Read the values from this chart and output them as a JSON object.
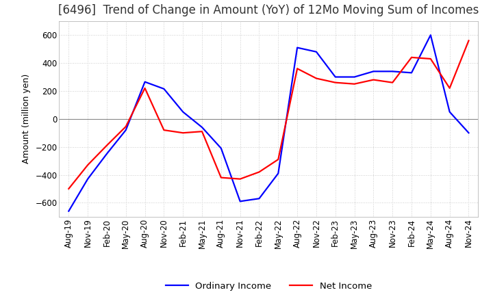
{
  "title": "[6496]  Trend of Change in Amount (YoY) of 12Mo Moving Sum of Incomes",
  "ylabel": "Amount (million yen)",
  "ylim": [
    -700,
    700
  ],
  "yticks": [
    -600,
    -400,
    -200,
    0,
    200,
    400,
    600
  ],
  "legend_labels": [
    "Ordinary Income",
    "Net Income"
  ],
  "line_colors": [
    "blue",
    "red"
  ],
  "x_labels": [
    "Aug-19",
    "Nov-19",
    "Feb-20",
    "May-20",
    "Aug-20",
    "Nov-20",
    "Feb-21",
    "May-21",
    "Aug-21",
    "Nov-21",
    "Feb-22",
    "May-22",
    "Aug-22",
    "Nov-22",
    "Feb-23",
    "May-23",
    "Aug-23",
    "Nov-23",
    "Feb-24",
    "May-24",
    "Aug-24",
    "Nov-24"
  ],
  "ordinary_income": [
    -660,
    -430,
    -250,
    -80,
    265,
    215,
    50,
    -60,
    -210,
    -590,
    -570,
    -390,
    510,
    480,
    300,
    300,
    340,
    340,
    330,
    600,
    50,
    -100
  ],
  "net_income": [
    -500,
    -330,
    -190,
    -55,
    220,
    -80,
    -100,
    -90,
    -420,
    -430,
    -380,
    -290,
    360,
    290,
    260,
    250,
    280,
    260,
    440,
    430,
    220,
    560
  ],
  "bg_color": "#ffffff",
  "plot_bg_color": "#ffffff",
  "grid_color": "#cccccc",
  "title_fontsize": 12,
  "axis_fontsize": 8.5,
  "legend_fontsize": 9.5,
  "line_width": 1.6
}
